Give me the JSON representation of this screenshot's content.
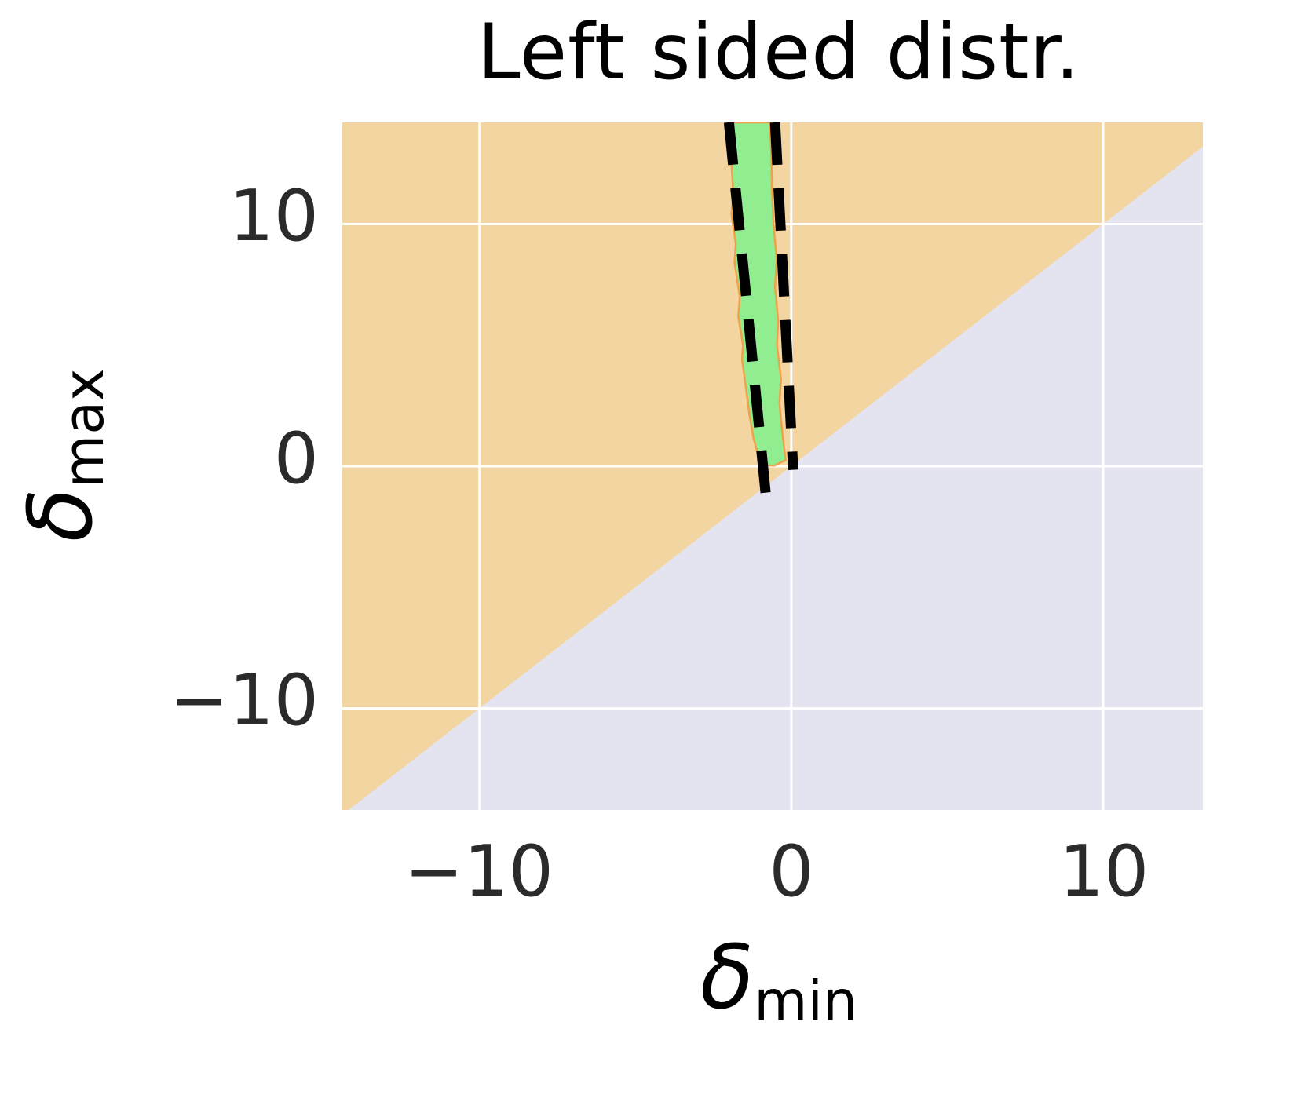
{
  "title": "Left sided distr.",
  "axes": {
    "xlabel": {
      "symbol": "δ",
      "subscript": "min"
    },
    "ylabel": {
      "symbol": "δ",
      "subscript": "max"
    },
    "xtick_labels": [
      "−10",
      "0",
      "10"
    ],
    "ytick_labels": [
      "10",
      "0",
      "−10"
    ]
  },
  "chart_data": {
    "type": "area",
    "title": "Left sided distr.",
    "xlabel": "delta_min",
    "ylabel": "delta_max",
    "xlim": [
      -14.4,
      13.2
    ],
    "ylim": [
      -14.2,
      14.2
    ],
    "xticks": [
      -10,
      0,
      10
    ],
    "yticks": [
      -10,
      0,
      10
    ],
    "grid": true,
    "legend": "none",
    "colors": {
      "feasible_region": "#F3D5A1",
      "infeasible_region": "#E4E4F0",
      "band_fill": "#90EE90",
      "band_edge": "#F0A14A",
      "dashed_line": "#000000",
      "gridline": "#FFFFFF",
      "background": "#FFFFFF"
    },
    "regions": [
      {
        "name": "feasible",
        "description": "upper-left triangle where delta_max > delta_min",
        "color_key": "feasible_region"
      },
      {
        "name": "infeasible",
        "description": "lower-right triangle below diagonal y = x",
        "color_key": "infeasible_region",
        "boundary": "y = x"
      }
    ],
    "band_polygon": [
      [
        -2.05,
        14.2
      ],
      [
        -1.92,
        12.6
      ],
      [
        -1.86,
        11.2
      ],
      [
        -1.92,
        10.4
      ],
      [
        -1.78,
        9.2
      ],
      [
        -1.82,
        8.4
      ],
      [
        -1.65,
        7.0
      ],
      [
        -1.7,
        6.2
      ],
      [
        -1.55,
        5.0
      ],
      [
        -1.58,
        4.4
      ],
      [
        -1.45,
        3.2
      ],
      [
        -1.35,
        2.2
      ],
      [
        -1.22,
        1.2
      ],
      [
        -1.05,
        0.4
      ],
      [
        -0.88,
        0.05
      ],
      [
        -0.55,
        0.02
      ],
      [
        -0.18,
        0.25
      ],
      [
        -0.28,
        1.3
      ],
      [
        -0.38,
        2.6
      ],
      [
        -0.33,
        3.6
      ],
      [
        -0.46,
        5.0
      ],
      [
        -0.42,
        6.0
      ],
      [
        -0.52,
        7.4
      ],
      [
        -0.47,
        8.6
      ],
      [
        -0.57,
        10.0
      ],
      [
        -0.62,
        11.4
      ],
      [
        -0.64,
        12.8
      ],
      [
        -0.68,
        14.2
      ]
    ],
    "dashed_lines": [
      {
        "x1": -2.0,
        "y1": 14.2,
        "x2": -0.82,
        "y2": -1.15
      },
      {
        "x1": -0.52,
        "y1": 14.2,
        "x2": 0.06,
        "y2": -0.15
      }
    ]
  }
}
